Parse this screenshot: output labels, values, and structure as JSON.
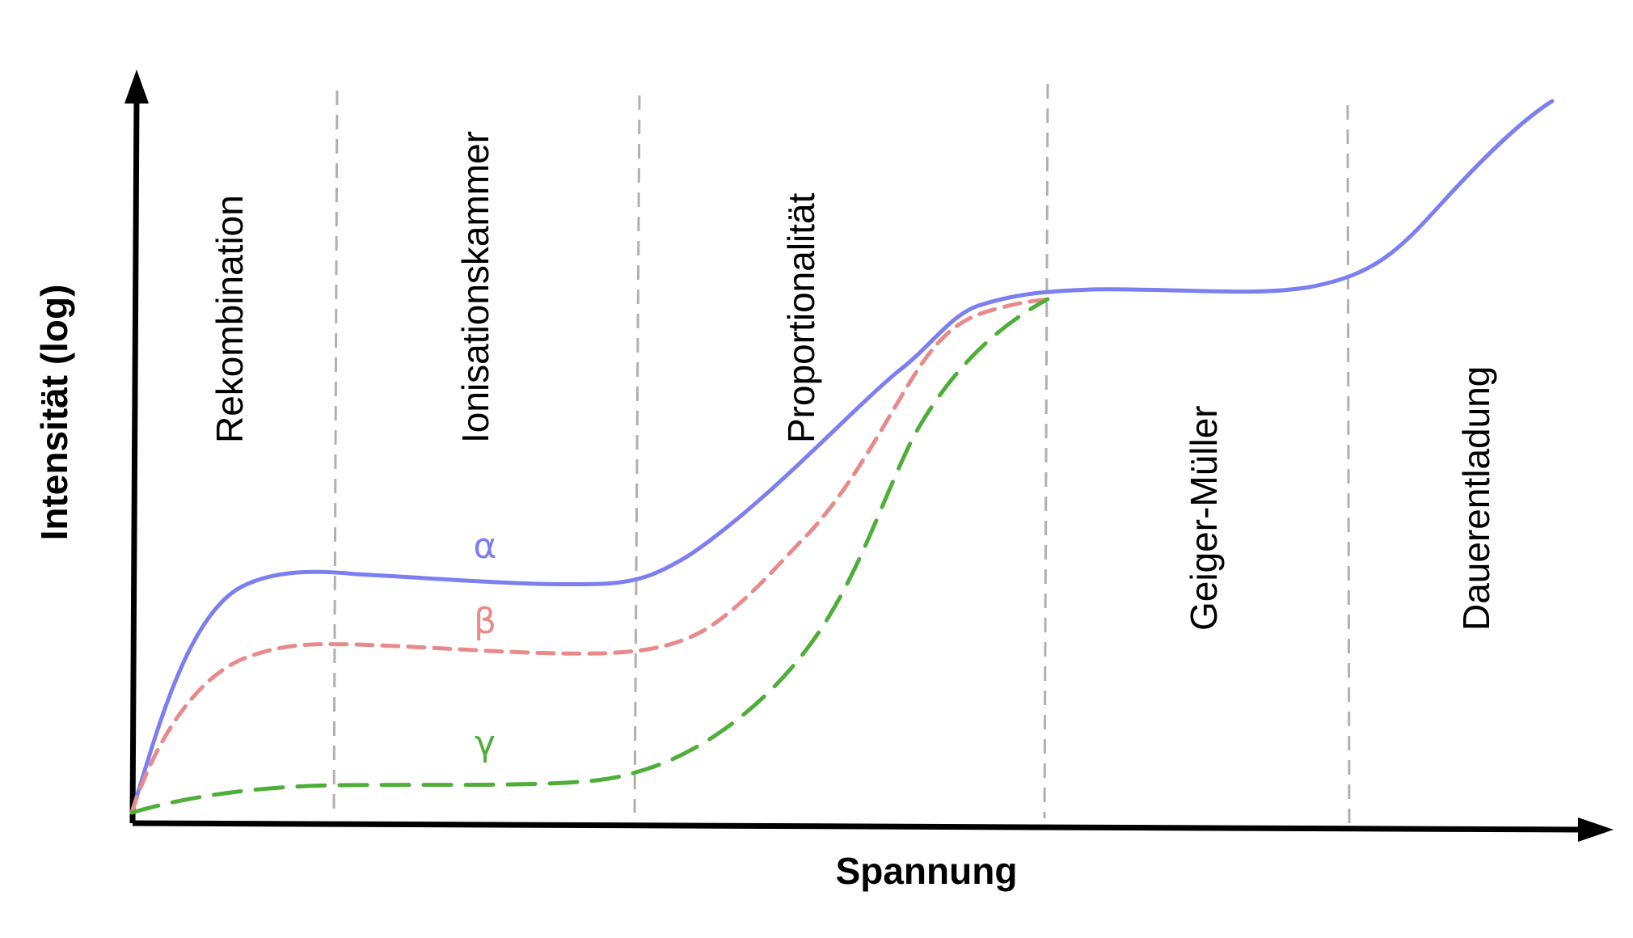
{
  "axes": {
    "x_title": "Spannung",
    "y_title": "Intensität (log)"
  },
  "regions": [
    {
      "label": "Rekombination"
    },
    {
      "label": "Ionisationskammer"
    },
    {
      "label": "Proportionalität"
    },
    {
      "label": "Geiger-Müller"
    },
    {
      "label": "Dauerentladung"
    }
  ],
  "curves": [
    {
      "label": "α",
      "color": "#7b7ff0",
      "style": "solid"
    },
    {
      "label": "β",
      "color": "#e88a8a",
      "style": "dashed"
    },
    {
      "label": "γ",
      "color": "#4fae3a",
      "style": "long-dashed"
    }
  ],
  "colors": {
    "axis": "#000000",
    "divider": "#b0b0b0"
  }
}
